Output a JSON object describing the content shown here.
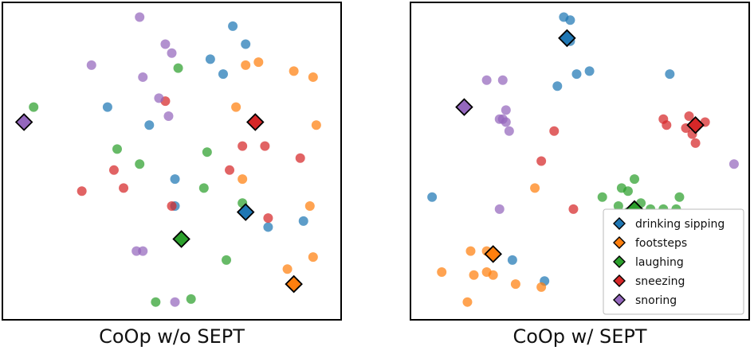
{
  "chart_data": [
    {
      "type": "scatter",
      "title": "CoOp w/o SEPT",
      "xlim": [
        0,
        100
      ],
      "ylim": [
        0,
        100
      ],
      "grid": false,
      "ticks": false,
      "series": [
        {
          "name": "drinking sipping",
          "color": "#1f77b4",
          "points": [
            [
              69,
              95
            ],
            [
              73,
              89
            ],
            [
              62,
              84
            ],
            [
              66,
              79
            ],
            [
              30,
              68
            ],
            [
              43,
              62
            ],
            [
              51,
              44
            ],
            [
              51,
              35
            ],
            [
              80,
              28
            ],
            [
              91,
              30
            ]
          ],
          "prototype": [
            73,
            33
          ]
        },
        {
          "name": "footsteps",
          "color": "#ff7f0e",
          "points": [
            [
              73,
              82
            ],
            [
              77,
              83
            ],
            [
              88,
              80
            ],
            [
              94,
              78
            ],
            [
              70,
              68
            ],
            [
              95,
              62
            ],
            [
              72,
              44
            ],
            [
              93,
              35
            ],
            [
              94,
              18
            ],
            [
              86,
              14
            ]
          ],
          "prototype": [
            88,
            9
          ]
        },
        {
          "name": "laughing",
          "color": "#2ca02c",
          "points": [
            [
              52,
              81
            ],
            [
              7,
              68
            ],
            [
              33,
              54
            ],
            [
              40,
              49
            ],
            [
              61,
              53
            ],
            [
              60,
              41
            ],
            [
              72,
              36
            ],
            [
              67,
              17
            ],
            [
              45,
              3
            ],
            [
              56,
              4
            ]
          ],
          "prototype": [
            53,
            24
          ]
        },
        {
          "name": "sneezing",
          "color": "#d62728",
          "points": [
            [
              48,
              70
            ],
            [
              72,
              55
            ],
            [
              79,
              55
            ],
            [
              90,
              51
            ],
            [
              32,
              47
            ],
            [
              68,
              47
            ],
            [
              22,
              40
            ],
            [
              35,
              41
            ],
            [
              50,
              35
            ],
            [
              80,
              31
            ]
          ],
          "prototype": [
            76,
            63
          ]
        },
        {
          "name": "snoring",
          "color": "#9467bd",
          "points": [
            [
              40,
              98
            ],
            [
              48,
              89
            ],
            [
              50,
              86
            ],
            [
              25,
              82
            ],
            [
              41,
              78
            ],
            [
              46,
              71
            ],
            [
              49,
              65
            ],
            [
              39,
              20
            ],
            [
              41,
              20
            ],
            [
              51,
              3
            ]
          ],
          "prototype": [
            4,
            63
          ]
        }
      ]
    },
    {
      "type": "scatter",
      "title": "CoOp w/ SEPT",
      "xlim": [
        0,
        100
      ],
      "ylim": [
        0,
        100
      ],
      "grid": false,
      "ticks": false,
      "legend": {
        "position": "bottom-right"
      },
      "series": [
        {
          "name": "drinking sipping",
          "color": "#1f77b4",
          "points": [
            [
              45,
              98
            ],
            [
              47,
              97
            ],
            [
              47,
              90
            ],
            [
              43,
              75
            ],
            [
              49,
              79
            ],
            [
              53,
              80
            ],
            [
              78,
              79
            ],
            [
              4,
              38
            ],
            [
              29,
              17
            ],
            [
              39,
              10
            ]
          ],
          "prototype": [
            46,
            91
          ]
        },
        {
          "name": "footsteps",
          "color": "#ff7f0e",
          "points": [
            [
              36,
              41
            ],
            [
              16,
              20
            ],
            [
              21,
              20
            ],
            [
              23,
              12
            ],
            [
              17,
              12
            ],
            [
              21,
              13
            ],
            [
              7,
              13
            ],
            [
              30,
              9
            ],
            [
              38,
              8
            ],
            [
              15,
              3
            ]
          ],
          "prototype": [
            23,
            19
          ]
        },
        {
          "name": "laughing",
          "color": "#2ca02c",
          "points": [
            [
              67,
              44
            ],
            [
              63,
              41
            ],
            [
              65,
              40
            ],
            [
              57,
              38
            ],
            [
              62,
              35
            ],
            [
              69,
              36
            ],
            [
              72,
              34
            ],
            [
              76,
              34
            ],
            [
              80,
              34
            ],
            [
              81,
              38
            ],
            [
              69,
              30
            ],
            [
              65,
              33
            ]
          ],
          "prototype": [
            67,
            34
          ]
        },
        {
          "name": "sneezing",
          "color": "#d62728",
          "points": [
            [
              42,
              60
            ],
            [
              38,
              50
            ],
            [
              76,
              64
            ],
            [
              77,
              62
            ],
            [
              84,
              65
            ],
            [
              89,
              63
            ],
            [
              83,
              61
            ],
            [
              85,
              59
            ],
            [
              86,
              56
            ],
            [
              48,
              34
            ]
          ],
          "prototype": [
            86,
            62
          ]
        },
        {
          "name": "snoring",
          "color": "#9467bd",
          "points": [
            [
              21,
              77
            ],
            [
              26,
              77
            ],
            [
              27,
              67
            ],
            [
              26,
              64
            ],
            [
              25,
              64
            ],
            [
              27,
              63
            ],
            [
              28,
              60
            ],
            [
              98,
              49
            ],
            [
              25,
              34
            ]
          ],
          "prototype": [
            14,
            68
          ]
        }
      ]
    }
  ]
}
